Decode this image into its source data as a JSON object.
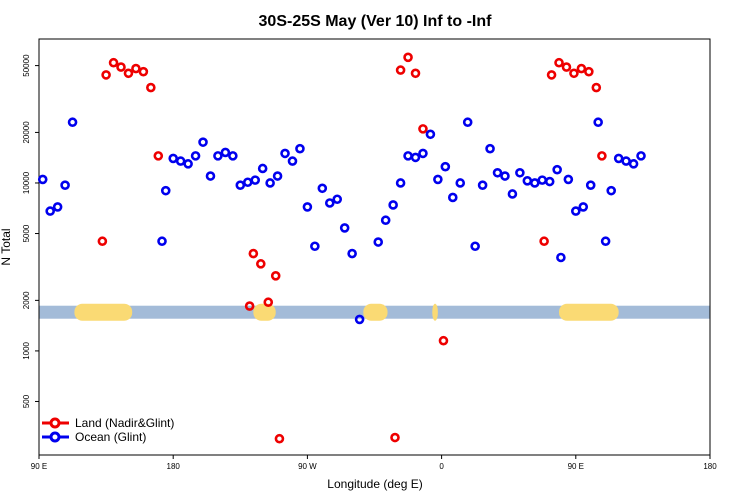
{
  "chart_data": {
    "type": "scatter",
    "title": "30S-25S May (Ver 10)   Inf to -Inf",
    "xlabel": "Longitude (deg E)",
    "ylabel": "N Total",
    "y_scale": "log",
    "xlim": [
      -180,
      180
    ],
    "ylim": [
      240,
      72000
    ],
    "x_ticks": [
      {
        "value": -180,
        "label": "90 E"
      },
      {
        "value": -108,
        "label": "180"
      },
      {
        "value": -36,
        "label": "90 W"
      },
      {
        "value": 36,
        "label": "0"
      },
      {
        "value": 108,
        "label": "90 E"
      },
      {
        "value": 180,
        "label": "180"
      }
    ],
    "y_ticks": [
      {
        "value": 500,
        "label": "500"
      },
      {
        "value": 1000,
        "label": "1000"
      },
      {
        "value": 2000,
        "label": "2000"
      },
      {
        "value": 5000,
        "label": "5000"
      },
      {
        "value": 10000,
        "label": "10000"
      },
      {
        "value": 20000,
        "label": "20000"
      },
      {
        "value": 50000,
        "label": "50000"
      }
    ],
    "legend": {
      "position": "bottom-left",
      "entries": [
        {
          "label": "Land (Nadir&Glint)",
          "color": "#ee0000"
        },
        {
          "label": "Ocean (Glint)",
          "color": "#0000ee"
        }
      ]
    },
    "land_ocean_band": {
      "y_value": 1700,
      "ocean_color": "#a3bbd8",
      "land_color": "#fada74",
      "land_segments": [
        [
          -161,
          -130
        ],
        [
          -65,
          -53
        ],
        [
          -6,
          7
        ],
        [
          31,
          34
        ],
        [
          99,
          131
        ]
      ]
    },
    "series": [
      {
        "name": "Land (Nadir&Glint)",
        "color": "#ee0000",
        "points": [
          {
            "x": -146,
            "y": 4500
          },
          {
            "x": -144,
            "y": 44000
          },
          {
            "x": -140,
            "y": 52000
          },
          {
            "x": -136,
            "y": 49000
          },
          {
            "x": -132,
            "y": 45000
          },
          {
            "x": -128,
            "y": 48000
          },
          {
            "x": -124,
            "y": 46000
          },
          {
            "x": -120,
            "y": 37000
          },
          {
            "x": -116,
            "y": 14500
          },
          {
            "x": -67,
            "y": 1850
          },
          {
            "x": -65,
            "y": 3800
          },
          {
            "x": -61,
            "y": 3300
          },
          {
            "x": -57,
            "y": 1950
          },
          {
            "x": -53,
            "y": 2800
          },
          {
            "x": -51,
            "y": 300
          },
          {
            "x": 11,
            "y": 305
          },
          {
            "x": 14,
            "y": 47000
          },
          {
            "x": 18,
            "y": 56000
          },
          {
            "x": 22,
            "y": 45000
          },
          {
            "x": 26,
            "y": 21000
          },
          {
            "x": 37,
            "y": 1150
          },
          {
            "x": 91,
            "y": 4500
          },
          {
            "x": 95,
            "y": 44000
          },
          {
            "x": 99,
            "y": 52000
          },
          {
            "x": 103,
            "y": 49000
          },
          {
            "x": 107,
            "y": 45000
          },
          {
            "x": 111,
            "y": 48000
          },
          {
            "x": 115,
            "y": 46000
          },
          {
            "x": 119,
            "y": 37000
          },
          {
            "x": 122,
            "y": 14500
          }
        ]
      },
      {
        "name": "Ocean (Glint)",
        "color": "#0000ee",
        "points": [
          {
            "x": -178,
            "y": 10500
          },
          {
            "x": -174,
            "y": 6800
          },
          {
            "x": -170,
            "y": 7200
          },
          {
            "x": -166,
            "y": 9700
          },
          {
            "x": -162,
            "y": 23000
          },
          {
            "x": -114,
            "y": 4500
          },
          {
            "x": -112,
            "y": 9000
          },
          {
            "x": -108,
            "y": 14000
          },
          {
            "x": -104,
            "y": 13500
          },
          {
            "x": -100,
            "y": 13000
          },
          {
            "x": -96,
            "y": 14500
          },
          {
            "x": -92,
            "y": 17500
          },
          {
            "x": -88,
            "y": 11000
          },
          {
            "x": -84,
            "y": 14500
          },
          {
            "x": -80,
            "y": 15200
          },
          {
            "x": -76,
            "y": 14500
          },
          {
            "x": -72,
            "y": 9700
          },
          {
            "x": -68,
            "y": 10100
          },
          {
            "x": -64,
            "y": 10400
          },
          {
            "x": -60,
            "y": 12200
          },
          {
            "x": -56,
            "y": 10000
          },
          {
            "x": -52,
            "y": 11000
          },
          {
            "x": -48,
            "y": 15000
          },
          {
            "x": -44,
            "y": 13500
          },
          {
            "x": -40,
            "y": 16000
          },
          {
            "x": -36,
            "y": 7200
          },
          {
            "x": -32,
            "y": 4200
          },
          {
            "x": -28,
            "y": 9300
          },
          {
            "x": -24,
            "y": 7600
          },
          {
            "x": -20,
            "y": 8000
          },
          {
            "x": -16,
            "y": 5400
          },
          {
            "x": -12,
            "y": 3800
          },
          {
            "x": -8,
            "y": 1540
          },
          {
            "x": 2,
            "y": 4450
          },
          {
            "x": 6,
            "y": 6000
          },
          {
            "x": 10,
            "y": 7400
          },
          {
            "x": 14,
            "y": 10000
          },
          {
            "x": 18,
            "y": 14500
          },
          {
            "x": 22,
            "y": 14200
          },
          {
            "x": 26,
            "y": 15000
          },
          {
            "x": 30,
            "y": 19500
          },
          {
            "x": 34,
            "y": 10500
          },
          {
            "x": 38,
            "y": 12500
          },
          {
            "x": 42,
            "y": 8200
          },
          {
            "x": 46,
            "y": 10000
          },
          {
            "x": 50,
            "y": 23000
          },
          {
            "x": 54,
            "y": 4200
          },
          {
            "x": 58,
            "y": 9700
          },
          {
            "x": 62,
            "y": 16000
          },
          {
            "x": 66,
            "y": 11500
          },
          {
            "x": 70,
            "y": 11000
          },
          {
            "x": 74,
            "y": 8600
          },
          {
            "x": 78,
            "y": 11500
          },
          {
            "x": 82,
            "y": 10300
          },
          {
            "x": 86,
            "y": 10000
          },
          {
            "x": 90,
            "y": 10400
          },
          {
            "x": 94,
            "y": 10200
          },
          {
            "x": 98,
            "y": 12000
          },
          {
            "x": 100,
            "y": 3600
          },
          {
            "x": 104,
            "y": 10500
          },
          {
            "x": 108,
            "y": 6800
          },
          {
            "x": 112,
            "y": 7200
          },
          {
            "x": 116,
            "y": 9700
          },
          {
            "x": 120,
            "y": 23000
          },
          {
            "x": 124,
            "y": 4500
          },
          {
            "x": 127,
            "y": 9000
          },
          {
            "x": 131,
            "y": 14000
          },
          {
            "x": 135,
            "y": 13500
          },
          {
            "x": 139,
            "y": 13000
          },
          {
            "x": 143,
            "y": 14500
          }
        ]
      }
    ]
  }
}
